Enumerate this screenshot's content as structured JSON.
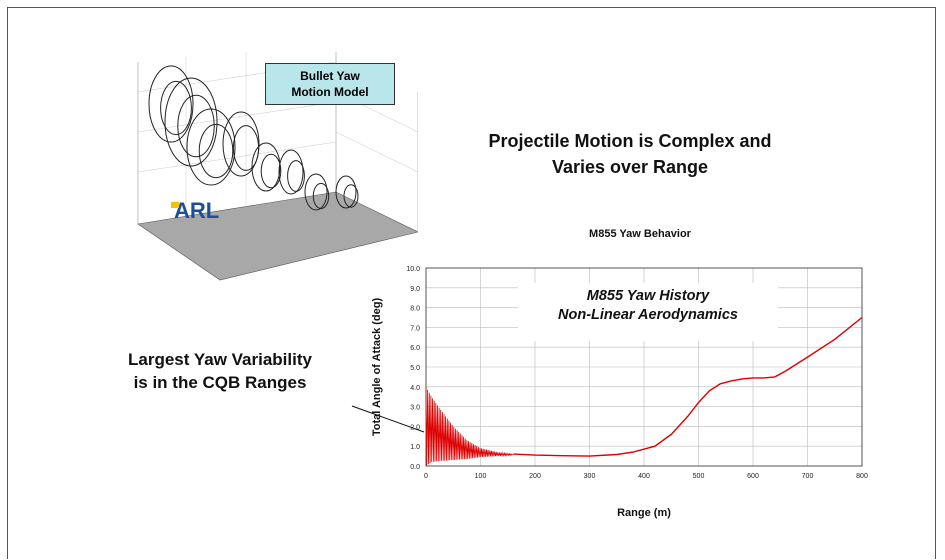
{
  "slide": {
    "title_line1": "Projectile Motion is Complex and",
    "title_line2": "Varies over Range",
    "callout_line1": "Largest Yaw Variability",
    "callout_line2": "is in the CQB Ranges"
  },
  "model_panel": {
    "label_line1": "Bullet Yaw",
    "label_line2": "Motion Model",
    "logo_text": "ARL",
    "colors": {
      "label_bg": "#b9e6ea",
      "floor": "#a8a8a8",
      "logo_yellow": "#f2c200",
      "logo_blue": "#1b4f9c"
    }
  },
  "chart_data": {
    "type": "line",
    "title": "M855 Yaw Behavior",
    "xlabel": "Range (m)",
    "ylabel": "Total Angle of Attack (deg)",
    "xlim": [
      0,
      800
    ],
    "ylim": [
      0,
      10
    ],
    "xticks": [
      "0",
      "100",
      "200",
      "300",
      "400",
      "500",
      "600",
      "700",
      "800"
    ],
    "yticks": [
      "0.0",
      "1.0",
      "2.0",
      "3.0",
      "4.0",
      "5.0",
      "6.0",
      "7.0",
      "8.0",
      "9.0",
      "10.0"
    ],
    "grid": true,
    "annotation_line1": "M855 Yaw History",
    "annotation_line2": "Non-Linear Aerodynamics",
    "series": [
      {
        "color": "#dd0000",
        "envelope_upper": {
          "x": [
            0,
            10,
            25,
            50,
            75,
            100,
            130,
            160
          ],
          "y": [
            4.0,
            3.5,
            2.9,
            2.0,
            1.3,
            0.9,
            0.7,
            0.6
          ]
        },
        "envelope_lower": {
          "x": [
            0,
            10,
            25,
            50,
            75,
            100,
            130,
            160
          ],
          "y": [
            0.0,
            0.2,
            0.25,
            0.3,
            0.35,
            0.45,
            0.5,
            0.55
          ]
        },
        "x": [
          160,
          200,
          250,
          300,
          350,
          380,
          420,
          450,
          480,
          500,
          520,
          540,
          560,
          580,
          600,
          620,
          640,
          660,
          700,
          750,
          800
        ],
        "y": [
          0.6,
          0.55,
          0.52,
          0.5,
          0.58,
          0.7,
          1.0,
          1.6,
          2.5,
          3.2,
          3.8,
          4.15,
          4.3,
          4.4,
          4.45,
          4.45,
          4.5,
          4.8,
          5.5,
          6.4,
          7.5
        ]
      }
    ]
  }
}
